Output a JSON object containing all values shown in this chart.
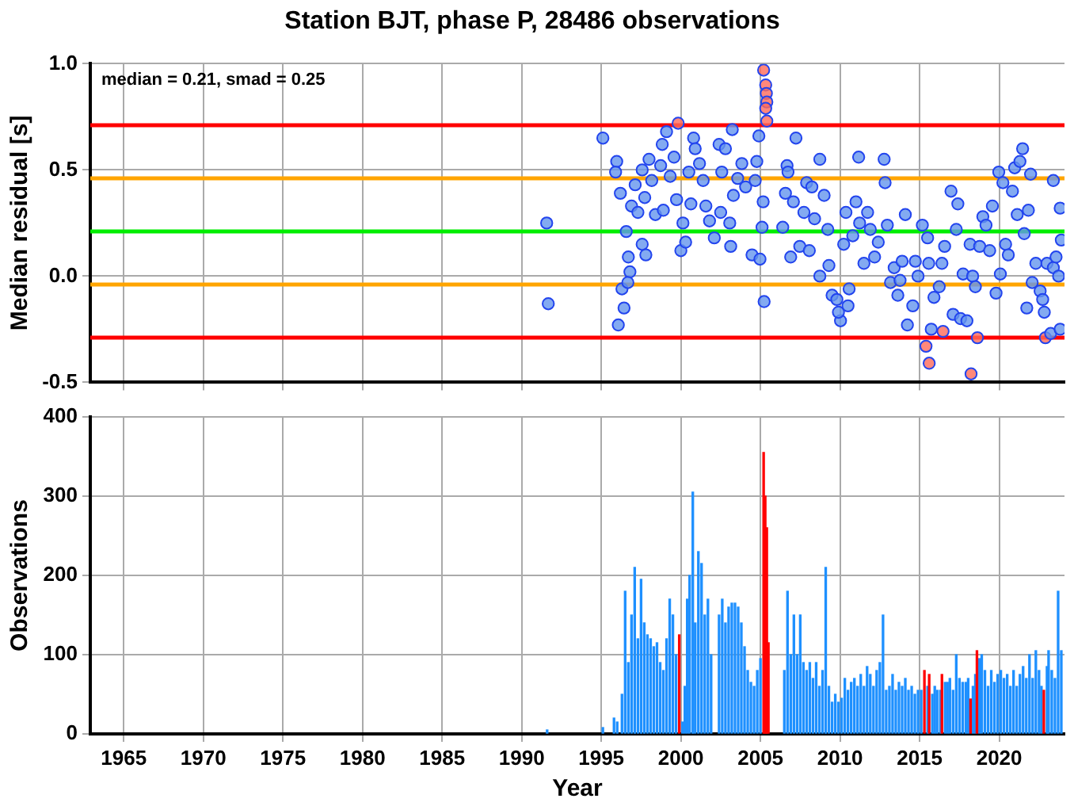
{
  "chart_data": [
    {
      "type": "scatter",
      "title": "Station BJT, phase P, 28486 observations",
      "ylabel": "Median residual [s]",
      "annotations": [
        "median = 0.21, smad = 0.25"
      ],
      "xlim": [
        1962.9,
        2024.1
      ],
      "xticks": [
        1965,
        1970,
        1975,
        1980,
        1985,
        1990,
        1995,
        2000,
        2005,
        2010,
        2015,
        2020
      ],
      "ylim": [
        -0.5,
        1.0
      ],
      "yticks": [
        -0.5,
        {
          "value": 0,
          "label": "0.0"
        },
        0.5,
        {
          "value": 1,
          "label": "1.0"
        }
      ],
      "tick_labels": "y",
      "grid": true,
      "marker": "circle",
      "series": [
        {
          "color": "#6495ed",
          "x": [
            1991.57,
            1991.67,
            1995.1,
            1995.97,
            1995.9,
            1996.2,
            1996.57,
            1996.9,
            1996.7,
            1996.8,
            1996.3,
            1996.43,
            1996.07,
            1996.67,
            1997.13,
            1997.57,
            1997.3,
            1997.73,
            1998.0,
            1997.57,
            1997.8,
            1998.17,
            1998.4,
            1998.73,
            1998.83,
            1999.1,
            1998.9,
            1999.33,
            1999.57,
            1999.73,
            2000.0,
            2000.3,
            2000.13,
            2000.5,
            2000.63,
            2000.8,
            2000.9,
            2001.17,
            2001.4,
            2001.57,
            2001.8,
            2002.1,
            2002.4,
            2002.8,
            2002.57,
            2002.5,
            2003.07,
            2003.13,
            2003.23,
            2003.3,
            2003.57,
            2003.83,
            2004.07,
            2004.47,
            2004.67,
            2004.77,
            2004.9,
            2004.97,
            2005.1,
            2005.17,
            2005.23,
            2006.4,
            2006.57,
            2006.67,
            2006.73,
            2006.9,
            2007.07,
            2007.23,
            2007.47,
            2007.73,
            2007.9,
            2008.07,
            2008.23,
            2008.4,
            2008.73,
            2008.73,
            2009.0,
            2009.23,
            2009.3,
            2009.5,
            2009.8,
            2010.03,
            2009.9,
            2010.23,
            2010.37,
            2010.57,
            2010.5,
            2010.8,
            2011.0,
            2011.17,
            2011.23,
            2011.5,
            2011.73,
            2011.9,
            2012.17,
            2012.4,
            2012.77,
            2012.83,
            2012.97,
            2013.17,
            2013.4,
            2013.63,
            2013.77,
            2013.9,
            2014.1,
            2014.23,
            2014.57,
            2014.73,
            2014.9,
            2015.17,
            2015.5,
            2015.57,
            2015.73,
            2015.9,
            2016.23,
            2016.4,
            2016.57,
            2016.97,
            2017.1,
            2017.3,
            2017.4,
            2017.57,
            2017.73,
            2017.97,
            2018.17,
            2018.33,
            2018.5,
            2018.77,
            2018.97,
            2019.17,
            2019.4,
            2019.57,
            2019.8,
            2019.97,
            2020.07,
            2020.23,
            2020.4,
            2020.57,
            2020.83,
            2020.97,
            2021.13,
            2021.3,
            2021.47,
            2021.57,
            2021.73,
            2021.83,
            2021.97,
            2022.07,
            2022.3,
            2022.57,
            2022.73,
            2022.83,
            2023.0,
            2023.23,
            2023.4,
            2023.4,
            2023.57,
            2023.73,
            2023.83,
            2023.83,
            2023.9
          ],
          "values": [
            0.25,
            -0.13,
            0.65,
            0.54,
            0.49,
            0.39,
            0.21,
            0.33,
            0.09,
            0.02,
            -0.06,
            -0.15,
            -0.23,
            -0.03,
            0.43,
            0.5,
            0.3,
            0.37,
            0.55,
            0.15,
            0.1,
            0.45,
            0.29,
            0.52,
            0.62,
            0.68,
            0.31,
            0.47,
            0.56,
            0.36,
            0.12,
            0.16,
            0.25,
            0.49,
            0.34,
            0.65,
            0.6,
            0.53,
            0.45,
            0.33,
            0.26,
            0.18,
            0.62,
            0.6,
            0.49,
            0.3,
            0.25,
            0.14,
            0.69,
            0.38,
            0.46,
            0.53,
            0.42,
            0.1,
            0.45,
            0.54,
            0.66,
            0.08,
            0.23,
            0.35,
            -0.12,
            0.23,
            0.39,
            0.52,
            0.49,
            0.09,
            0.35,
            0.65,
            0.14,
            0.3,
            0.44,
            0.12,
            0.42,
            0.27,
            0.55,
            0.0,
            0.38,
            0.22,
            0.05,
            -0.09,
            -0.11,
            -0.21,
            -0.17,
            0.15,
            0.3,
            -0.06,
            -0.14,
            0.19,
            0.35,
            0.56,
            0.25,
            0.06,
            0.3,
            0.22,
            0.09,
            0.16,
            0.55,
            0.44,
            0.24,
            -0.03,
            0.04,
            -0.09,
            -0.02,
            0.07,
            0.29,
            -0.23,
            -0.14,
            0.07,
            0.0,
            0.24,
            0.18,
            0.06,
            -0.25,
            -0.1,
            -0.05,
            0.06,
            0.14,
            0.4,
            -0.18,
            0.22,
            0.34,
            -0.2,
            0.01,
            -0.21,
            0.15,
            0.0,
            -0.05,
            0.14,
            0.28,
            0.24,
            0.12,
            0.33,
            -0.08,
            0.49,
            0.01,
            0.44,
            0.15,
            0.1,
            0.4,
            0.51,
            0.29,
            0.54,
            0.6,
            0.2,
            -0.15,
            0.31,
            0.48,
            -0.03,
            0.06,
            -0.07,
            -0.11,
            -0.17,
            0.06,
            -0.27,
            0.04,
            0.45,
            0.09,
            0.0,
            0.32,
            -0.25,
            0.17
          ]
        },
        {
          "color": "#ff6a5a",
          "x": [
            1999.83,
            2005.2,
            2005.33,
            2005.37,
            2005.4,
            2005.33,
            2005.4,
            2015.4,
            2015.6,
            2016.47,
            2018.63,
            2018.23,
            2022.9
          ],
          "values": [
            0.72,
            0.97,
            0.9,
            0.86,
            0.82,
            0.79,
            0.73,
            -0.33,
            -0.41,
            -0.26,
            -0.29,
            -0.46,
            -0.29
          ]
        }
      ],
      "ref_lines": [
        {
          "axis": "y",
          "value": 0.71,
          "color": "#ff0000"
        },
        {
          "axis": "y",
          "value": 0.46,
          "color": "#ffa500"
        },
        {
          "axis": "y",
          "value": 0.21,
          "color": "#00ee00"
        },
        {
          "axis": "y",
          "value": -0.04,
          "color": "#ffa500"
        },
        {
          "axis": "y",
          "value": -0.29,
          "color": "#ff0000"
        }
      ]
    },
    {
      "type": "bar",
      "xlabel": "Year",
      "ylabel": "Observations",
      "xlim": [
        1962.9,
        2024.1
      ],
      "xticks": [
        1965,
        1970,
        1975,
        1980,
        1985,
        1990,
        1995,
        2000,
        2005,
        2010,
        2015,
        2020
      ],
      "ylim": [
        0,
        400
      ],
      "yticks": [
        0,
        100,
        200,
        300,
        400
      ],
      "grid": true,
      "series": [
        {
          "color": "#1e90ff",
          "x": [
            1991.6,
            1995.1,
            1995.8,
            1996.0,
            1996.3,
            1996.5,
            1996.7,
            1996.9,
            1997.1,
            1997.3,
            1997.5,
            1997.7,
            1997.9,
            1998.1,
            1998.3,
            1998.5,
            1998.7,
            1998.9,
            1999.1,
            1999.3,
            1999.5,
            1999.7,
            2000.1,
            2000.25,
            2000.4,
            2000.55,
            2000.75,
            2000.9,
            2001.1,
            2001.3,
            2001.5,
            2001.7,
            2001.9,
            2002.4,
            2002.6,
            2002.8,
            2003.0,
            2003.2,
            2003.4,
            2003.6,
            2003.8,
            2004.0,
            2004.2,
            2004.4,
            2004.6,
            2004.8,
            2005.0,
            2006.5,
            2006.7,
            2006.9,
            2007.1,
            2007.3,
            2007.5,
            2007.7,
            2007.9,
            2008.1,
            2008.3,
            2008.5,
            2008.7,
            2008.9,
            2009.1,
            2009.3,
            2009.5,
            2009.7,
            2009.9,
            2010.1,
            2010.3,
            2010.5,
            2010.7,
            2010.9,
            2011.1,
            2011.3,
            2011.5,
            2011.7,
            2011.9,
            2012.1,
            2012.3,
            2012.5,
            2012.7,
            2012.9,
            2013.1,
            2013.3,
            2013.5,
            2013.7,
            2013.9,
            2014.1,
            2014.3,
            2014.5,
            2014.7,
            2014.9,
            2015.1,
            2015.5,
            2015.8,
            2015.95,
            2016.1,
            2016.3,
            2016.6,
            2016.75,
            2016.9,
            2017.1,
            2017.3,
            2017.5,
            2017.7,
            2017.9,
            2018.05,
            2018.35,
            2018.5,
            2018.75,
            2018.9,
            2019.1,
            2019.3,
            2019.5,
            2019.7,
            2019.9,
            2020.1,
            2020.3,
            2020.5,
            2020.7,
            2020.9,
            2021.1,
            2021.3,
            2021.5,
            2021.7,
            2021.9,
            2022.1,
            2022.3,
            2022.5,
            2022.65,
            2023.0,
            2023.1,
            2023.3,
            2023.5,
            2023.7,
            2023.9
          ],
          "values": [
            5,
            8,
            20,
            15,
            50,
            180,
            90,
            150,
            210,
            120,
            195,
            140,
            125,
            120,
            110,
            115,
            90,
            80,
            120,
            170,
            150,
            100,
            15,
            60,
            170,
            200,
            305,
            140,
            230,
            215,
            150,
            170,
            100,
            150,
            170,
            140,
            160,
            165,
            165,
            160,
            140,
            110,
            80,
            65,
            60,
            80,
            95,
            80,
            180,
            100,
            150,
            100,
            150,
            90,
            80,
            90,
            70,
            90,
            60,
            80,
            210,
            60,
            40,
            50,
            40,
            45,
            70,
            55,
            65,
            70,
            60,
            75,
            60,
            85,
            75,
            60,
            80,
            90,
            150,
            55,
            60,
            75,
            55,
            65,
            60,
            70,
            55,
            60,
            50,
            55,
            55,
            60,
            50,
            60,
            55,
            55,
            65,
            65,
            70,
            55,
            100,
            70,
            65,
            65,
            70,
            60,
            75,
            95,
            100,
            80,
            60,
            80,
            65,
            75,
            80,
            70,
            75,
            60,
            80,
            60,
            75,
            85,
            70,
            100,
            70,
            105,
            80,
            60,
            85,
            105,
            80,
            70,
            180,
            105
          ]
        },
        {
          "color": "#ff0000",
          "x": [
            1999.9,
            2005.2,
            2005.3,
            2005.4,
            2005.5,
            2015.3,
            2015.6,
            2016.4,
            2018.2,
            2018.6,
            2022.8
          ],
          "values": [
            125,
            355,
            300,
            260,
            115,
            80,
            75,
            75,
            44,
            105,
            55
          ]
        }
      ]
    }
  ]
}
